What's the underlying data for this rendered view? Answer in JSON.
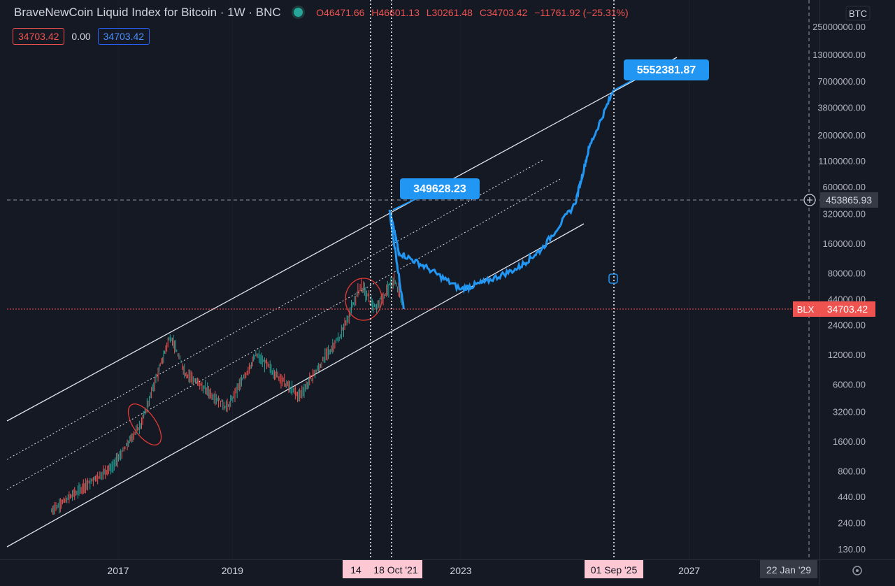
{
  "legend": {
    "title": "BraveNewCoin Liquid Index for Bitcoin · 1W · BNC",
    "open": "O46471.66",
    "high": "H46601.13",
    "low": "L30261.48",
    "close": "C34703.42",
    "change": "−11761.92 (−25.31%)"
  },
  "inputs": {
    "a": "34703.42",
    "b": "0.00",
    "c": "34703.42"
  },
  "chart_data": {
    "type": "line",
    "scale": "log",
    "currency": "BTC",
    "y_ticks": [
      "25000000.00",
      "13000000.00",
      "7000000.00",
      "3800000.00",
      "2000000.00",
      "1100000.00",
      "600000.00",
      "320000.00",
      "160000.00",
      "80000.00",
      "44000.00",
      "24000.00",
      "12000.00",
      "6000.00",
      "3200.00",
      "1600.00",
      "800.00",
      "440.00",
      "240.00",
      "130.00"
    ],
    "x_ticks": [
      "2017",
      "2019",
      "2023",
      "2027"
    ],
    "crosshair_price": "453865.93",
    "last_price_label": "BLX",
    "last_price": "34703.42",
    "annotations": [
      "349628.23",
      "5552381.87"
    ],
    "date_labels": [
      "14",
      "18 Oct '21",
      "01 Sep '25",
      "22 Jan '29"
    ],
    "historical": {
      "x": [
        "2015-11",
        "2016-06",
        "2016-12",
        "2017-06",
        "2017-12",
        "2018-03",
        "2018-12",
        "2019-06",
        "2020-03",
        "2020-12",
        "2021-04",
        "2021-07",
        "2021-11",
        "2022-01"
      ],
      "y": [
        320,
        560,
        900,
        2500,
        19000,
        8000,
        3500,
        12000,
        4500,
        20000,
        60000,
        35000,
        68000,
        38000
      ]
    },
    "projection": {
      "x": [
        "2022-01",
        "2021-10",
        "2021-12",
        "2022-06",
        "2023-01",
        "2023-06",
        "2024-01",
        "2024-06",
        "2025-01",
        "2025-04",
        "2025-09"
      ],
      "y": [
        34703,
        349628,
        130000,
        90000,
        55000,
        65000,
        90000,
        140000,
        400000,
        1500000,
        5552381
      ]
    }
  }
}
